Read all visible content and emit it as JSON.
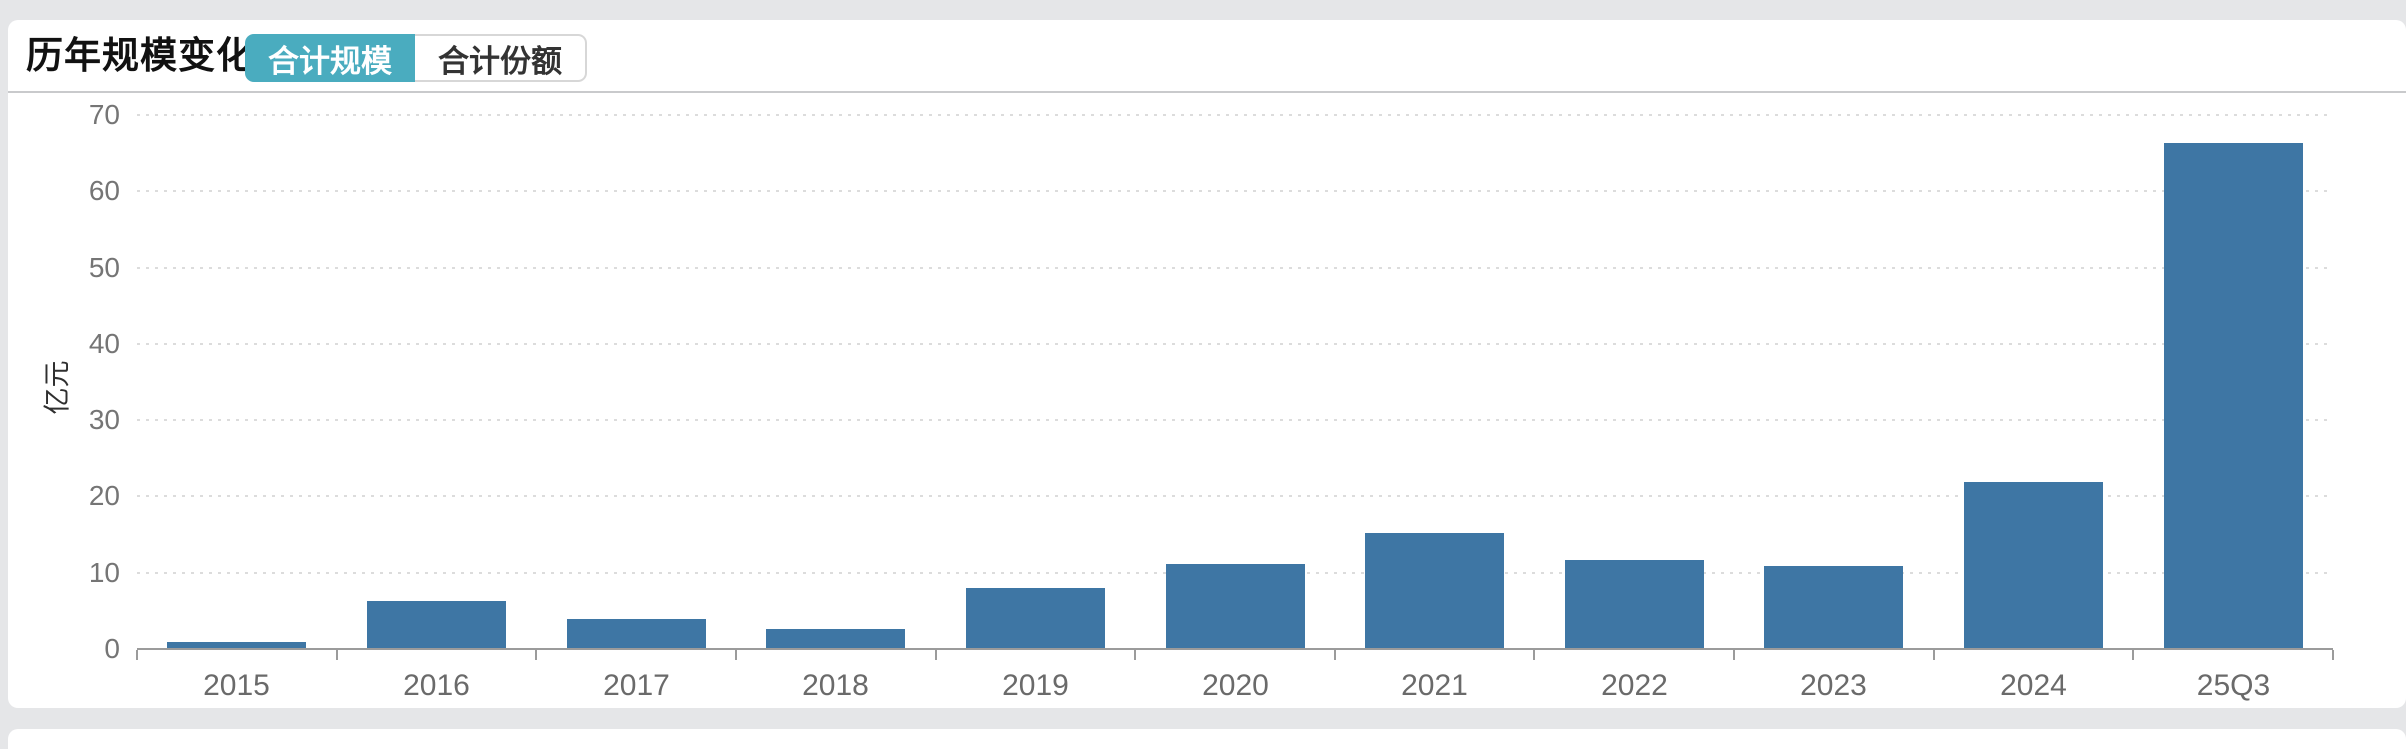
{
  "header": {
    "title": "历年规模变化",
    "tabs": [
      {
        "label": "合计规模",
        "selected": true
      },
      {
        "label": "合计份额",
        "selected": false
      }
    ]
  },
  "colors": {
    "accent_teal": "#4aacbf",
    "bar_blue": "#3e76a4",
    "page_background": "#e5e6e8",
    "gridline": "#dcdcdc",
    "axis": "#9b9b9b"
  },
  "chart_data": {
    "type": "bar",
    "title": "历年规模变化",
    "categories": [
      "2015",
      "2016",
      "2017",
      "2018",
      "2019",
      "2020",
      "2021",
      "2022",
      "2023",
      "2024",
      "25Q3"
    ],
    "values": [
      0.9,
      6.3,
      3.9,
      2.6,
      8.0,
      11.2,
      15.2,
      11.7,
      10.9,
      21.9,
      66.3
    ],
    "xlabel": "",
    "ylabel": "亿元",
    "ylim": [
      0,
      70
    ],
    "yticks": [
      0,
      10,
      20,
      30,
      40,
      50,
      60,
      70
    ],
    "grid": "horizontal-dotted",
    "legend": "none",
    "bar_color": "#3e76a4"
  }
}
